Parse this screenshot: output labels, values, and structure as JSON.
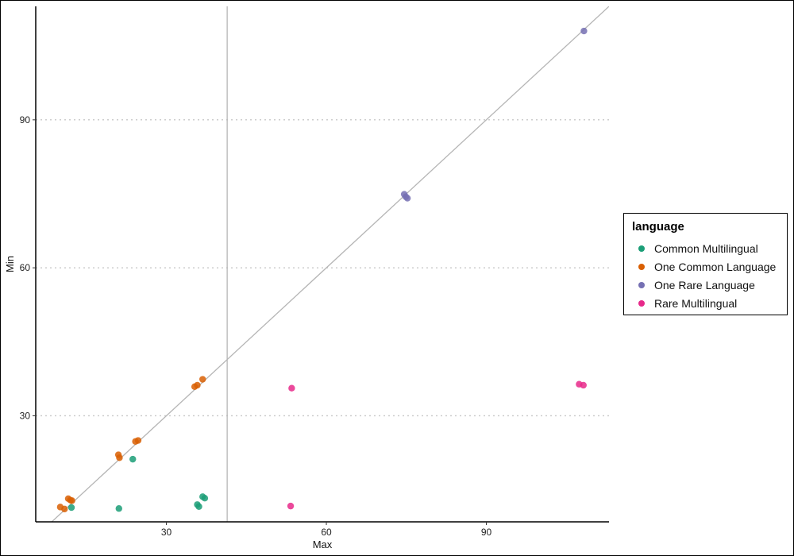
{
  "chart_data": {
    "type": "scatter",
    "title": "",
    "xlabel": "Max",
    "ylabel": "Min",
    "xlim": [
      5.5,
      113
    ],
    "ylim": [
      8.5,
      113
    ],
    "x_ticks": [
      30,
      60,
      90
    ],
    "y_ticks": [
      30,
      60,
      90
    ],
    "gridlines": "horizontal dotted at y ticks",
    "reference_lines": {
      "identity_diagonal": true,
      "vertical_x": 41.4
    },
    "legend": {
      "title": "language",
      "position": "right"
    },
    "series": [
      {
        "name": "Common Multilingual",
        "color": "#1b9e77",
        "points": [
          [
            12.2,
            11.4
          ],
          [
            23.7,
            21.2
          ],
          [
            21.1,
            11.2
          ],
          [
            35.8,
            12.0
          ],
          [
            36.1,
            11.6
          ],
          [
            36.8,
            13.6
          ],
          [
            37.2,
            13.3
          ]
        ]
      },
      {
        "name": "One Common Language",
        "color": "#d95f02",
        "points": [
          [
            10.1,
            11.5
          ],
          [
            10.9,
            11.1
          ],
          [
            11.6,
            13.2
          ],
          [
            12.0,
            12.9
          ],
          [
            12.3,
            12.8
          ],
          [
            21.0,
            22.1
          ],
          [
            21.2,
            21.5
          ],
          [
            24.2,
            24.8
          ],
          [
            24.7,
            25.0
          ],
          [
            35.3,
            35.9
          ],
          [
            35.8,
            36.2
          ],
          [
            36.8,
            37.4
          ]
        ]
      },
      {
        "name": "One Rare Language",
        "color": "#7570b3",
        "points": [
          [
            74.6,
            74.9
          ],
          [
            74.9,
            74.4
          ],
          [
            75.2,
            74.1
          ],
          [
            108.3,
            108.0
          ]
        ]
      },
      {
        "name": "Rare Multilingual",
        "color": "#e7298a",
        "points": [
          [
            53.3,
            11.7
          ],
          [
            53.5,
            35.6
          ],
          [
            107.4,
            36.4
          ],
          [
            108.2,
            36.2
          ]
        ]
      }
    ]
  }
}
